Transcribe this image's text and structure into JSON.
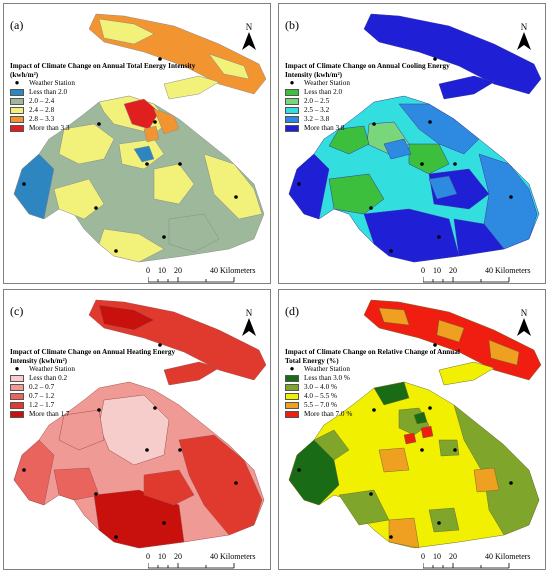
{
  "panels": [
    {
      "id": "a",
      "label": "(a)",
      "legend_title": "Impact of Climate Change on Annual Total Energy Intensity (kwh/m²)",
      "station_label": "Weather Station",
      "classes": [
        {
          "label": "Less than 2.0",
          "color": "#2e86c1"
        },
        {
          "label": "2.0 – 2.4",
          "color": "#9db89a"
        },
        {
          "label": "2.4 – 2.8",
          "color": "#f2f27a"
        },
        {
          "label": "2.8 – 3.3",
          "color": "#f29430"
        },
        {
          "label": "More than 3.3",
          "color": "#e0201e"
        }
      ]
    },
    {
      "id": "b",
      "label": "(b)",
      "legend_title": "Impact of Climate Change on Annual Cooling Energy Intensity (kwh/m²)",
      "station_label": "Weather Station",
      "classes": [
        {
          "label": "Less than 2.0",
          "color": "#3cbf3c"
        },
        {
          "label": "2.0 – 2.5",
          "color": "#7ad67a"
        },
        {
          "label": "2.5 – 3.2",
          "color": "#33dede"
        },
        {
          "label": "3.2 – 3.8",
          "color": "#2e8ae0"
        },
        {
          "label": "More than 3.8",
          "color": "#1f1fd6"
        }
      ]
    },
    {
      "id": "c",
      "label": "(c)",
      "legend_title": "Impact of Climate Change on Annual Heating Energy Intensity (kwh/m²)",
      "station_label": "Weather Station",
      "classes": [
        {
          "label": "Less than 0.2",
          "color": "#f7cdcb"
        },
        {
          "label": "0.2 – 0.7",
          "color": "#ef9a95"
        },
        {
          "label": "0.7 – 1.2",
          "color": "#e8645c"
        },
        {
          "label": "1.2 – 1.7",
          "color": "#e03a2e"
        },
        {
          "label": "More than 1.7",
          "color": "#c8100c"
        }
      ]
    },
    {
      "id": "d",
      "label": "(d)",
      "legend_title": "Impact of Climate Change on Relative Change of Annual Total Energy (%)",
      "station_label": "Weather Station",
      "classes": [
        {
          "label": "Less than 3.0 %",
          "color": "#1a6b16"
        },
        {
          "label": "3.0 – 4.0 %",
          "color": "#7fa52a"
        },
        {
          "label": "4.0 – 5.5 %",
          "color": "#f0f000"
        },
        {
          "label": "5.5 – 7.0 %",
          "color": "#f0a020"
        },
        {
          "label": "More than 7.0 %",
          "color": "#f01e10"
        }
      ]
    }
  ],
  "north_label": "N",
  "scale": {
    "ticks": [
      "0",
      "10",
      "20",
      "40 Kilometers"
    ]
  }
}
